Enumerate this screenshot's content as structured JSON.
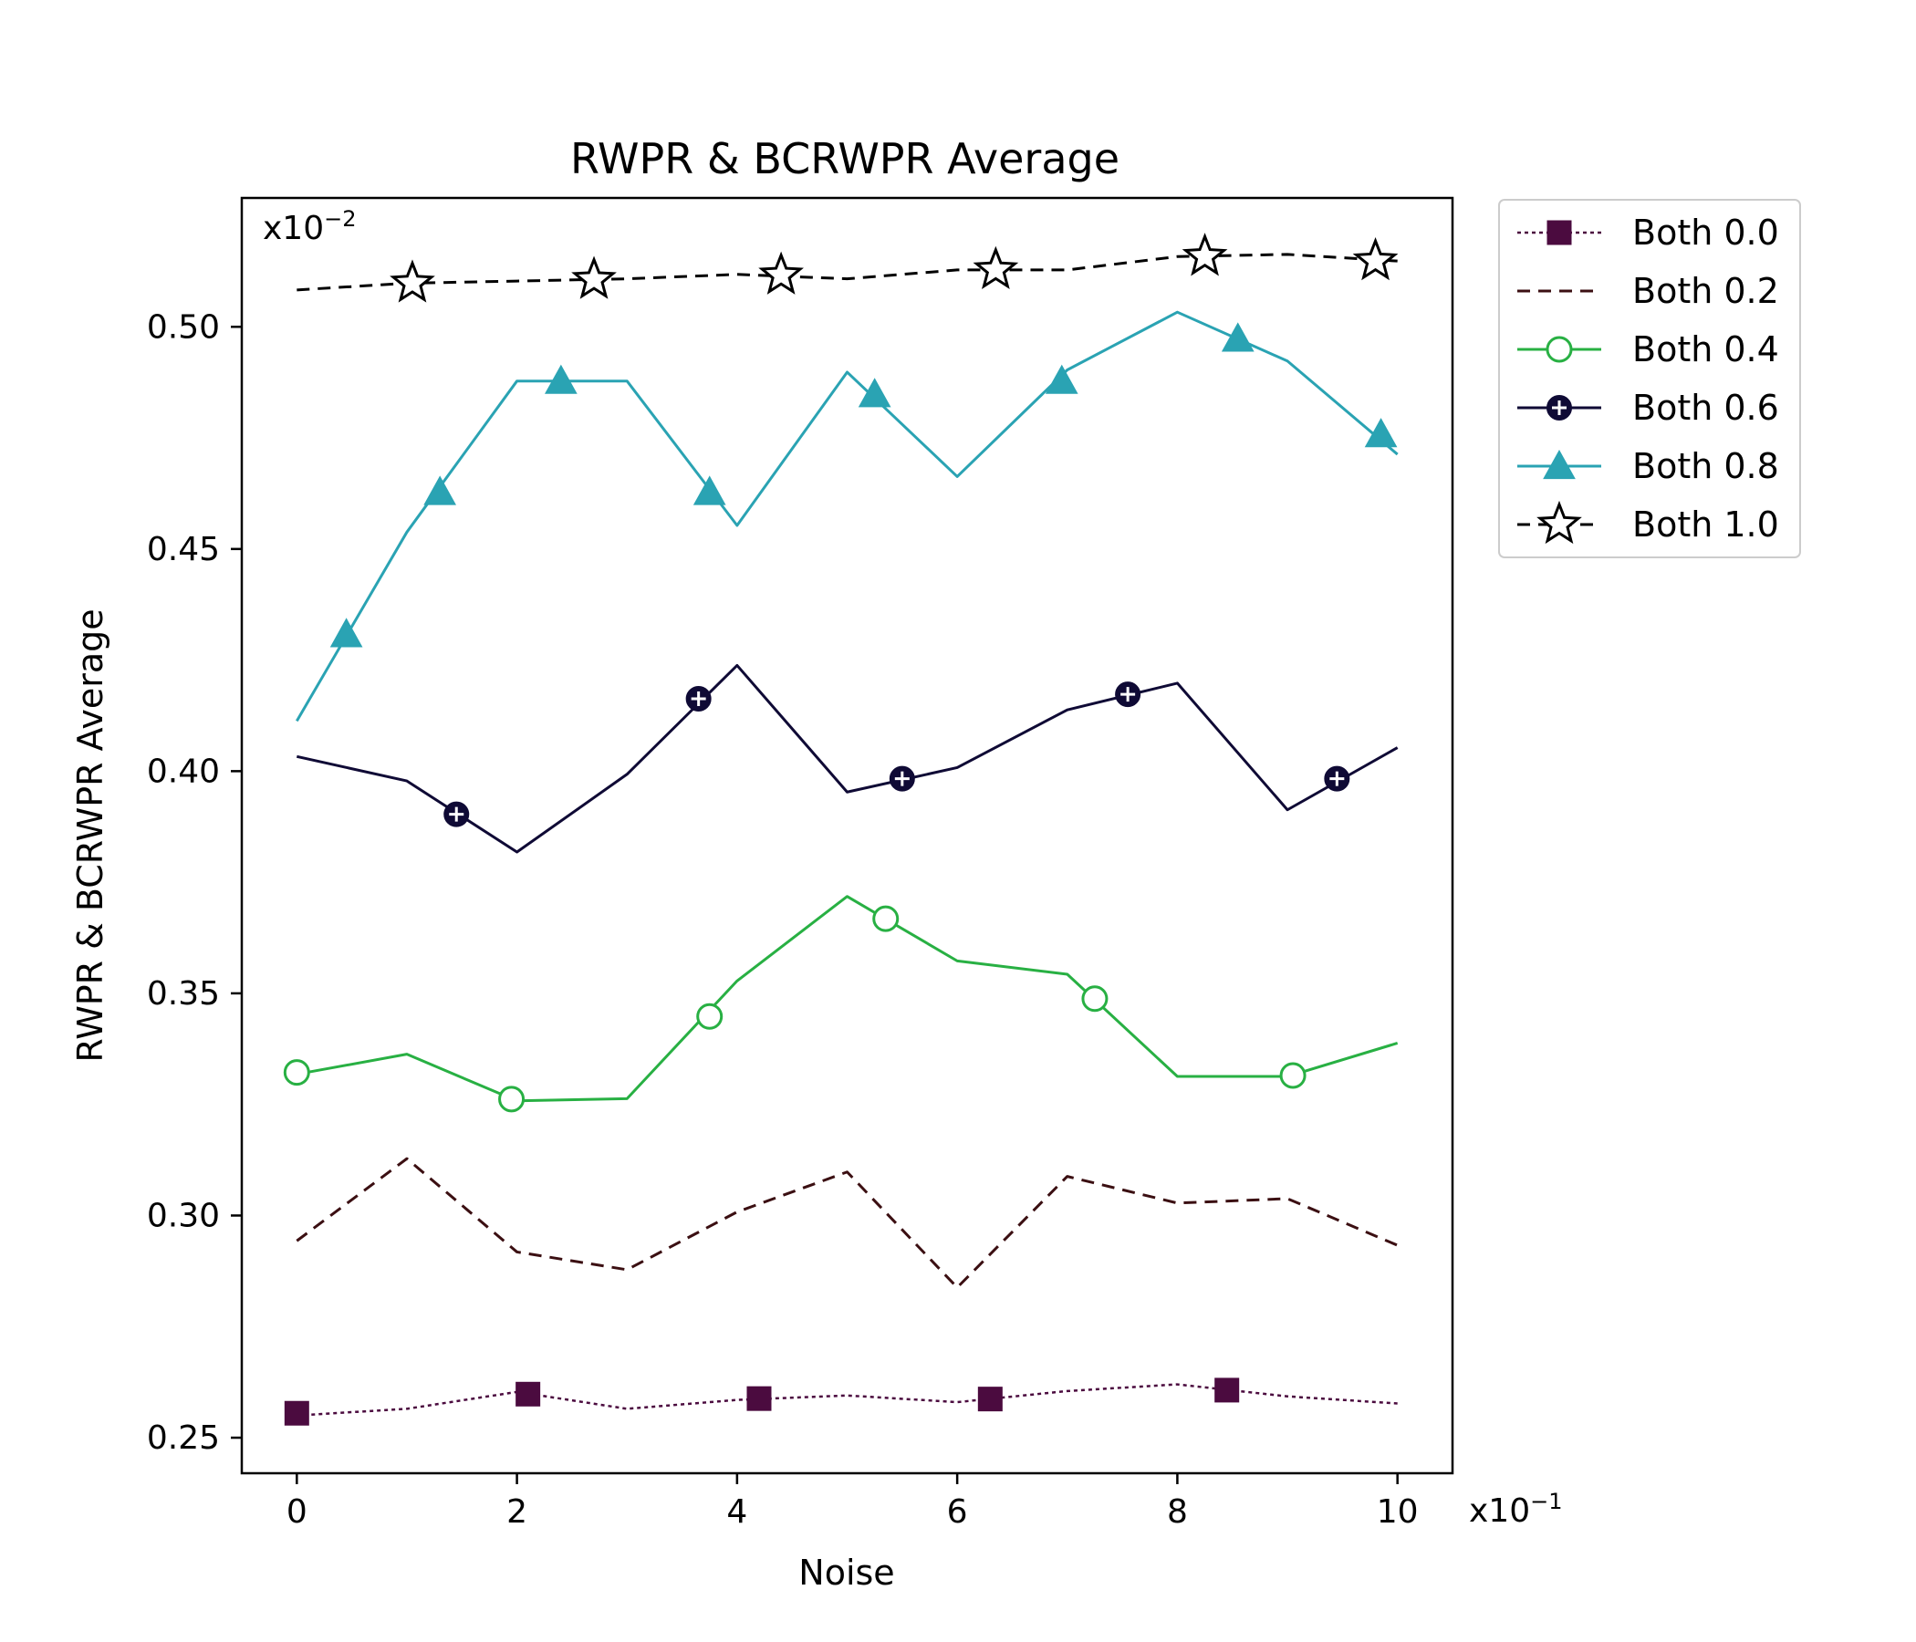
{
  "chart_data": {
    "type": "line",
    "title": "RWPR & BCRWPR Average",
    "xlabel": "Noise",
    "ylabel": "RWPR & BCRWPR Average",
    "x_multiplier": {
      "base": "x10",
      "exponent": "−1"
    },
    "y_multiplier": {
      "base": "x10",
      "exponent": "−2"
    },
    "xlim": [
      -0.5,
      10.5
    ],
    "ylim": [
      0.242,
      0.529
    ],
    "xticks": [
      0,
      2,
      4,
      6,
      8,
      10
    ],
    "xtick_labels": [
      "0",
      "2",
      "4",
      "6",
      "8",
      "10"
    ],
    "yticks": [
      0.25,
      0.3,
      0.35,
      0.4,
      0.45,
      0.5
    ],
    "ytick_labels": [
      "0.25",
      "0.30",
      "0.35",
      "0.40",
      "0.45",
      "0.50"
    ],
    "legend_position": "outside-top-right",
    "x": [
      0,
      1,
      2,
      3,
      4,
      5,
      6,
      7,
      8,
      9,
      10
    ],
    "series": [
      {
        "name": "Both 0.0",
        "color": "#4b0b3f",
        "dash": "dotted",
        "marker": "square",
        "values": [
          0.255,
          0.2565,
          0.2603,
          0.2565,
          0.2585,
          0.2595,
          0.258,
          0.2605,
          0.262,
          0.2593,
          0.2577
        ],
        "marker_points": [
          [
            0,
            0.2555
          ],
          [
            2.1,
            0.2598
          ],
          [
            4.2,
            0.2588
          ],
          [
            6.3,
            0.2587
          ],
          [
            8.45,
            0.2607
          ]
        ]
      },
      {
        "name": "Both 0.2",
        "color": "#3b0f12",
        "dash": "dashed",
        "marker": "none",
        "values": [
          0.2943,
          0.3128,
          0.2918,
          0.2878,
          0.3008,
          0.3098,
          0.2838,
          0.3088,
          0.3028,
          0.3038,
          0.2933
        ],
        "marker_points": []
      },
      {
        "name": "Both 0.4",
        "color": "#28b043",
        "dash": "solid",
        "marker": "circle-open",
        "values": [
          0.3318,
          0.3363,
          0.3258,
          0.3263,
          0.3528,
          0.3718,
          0.3573,
          0.3543,
          0.3313,
          0.3313,
          0.3388
        ],
        "marker_points": [
          [
            0,
            0.3322
          ],
          [
            1.95,
            0.3262
          ],
          [
            3.75,
            0.3448
          ],
          [
            5.35,
            0.3668
          ],
          [
            7.25,
            0.3488
          ],
          [
            9.05,
            0.3315
          ]
        ]
      },
      {
        "name": "Both 0.6",
        "color": "#0f0a35",
        "dash": "solid",
        "marker": "circle-plus",
        "values": [
          0.4033,
          0.3978,
          0.3818,
          0.3993,
          0.4238,
          0.3953,
          0.4008,
          0.4138,
          0.4198,
          0.3913,
          0.4053
        ],
        "marker_points": [
          [
            1.45,
            0.3903
          ],
          [
            3.65,
            0.4163
          ],
          [
            5.5,
            0.3983
          ],
          [
            7.55,
            0.4173
          ],
          [
            9.45,
            0.3983
          ]
        ]
      },
      {
        "name": "Both 0.8",
        "color": "#2aa3b3",
        "dash": "solid",
        "marker": "triangle",
        "values": [
          0.4113,
          0.4538,
          0.4878,
          0.4878,
          0.4553,
          0.4898,
          0.4663,
          0.4903,
          0.5033,
          0.4923,
          0.4713
        ],
        "marker_points": [
          [
            0.45,
            0.4308
          ],
          [
            1.3,
            0.4628
          ],
          [
            2.4,
            0.4878
          ],
          [
            3.75,
            0.4628
          ],
          [
            5.25,
            0.4848
          ],
          [
            6.95,
            0.4878
          ],
          [
            8.55,
            0.4973
          ],
          [
            9.85,
            0.4758
          ]
        ]
      },
      {
        "name": "Both 1.0",
        "color": "#000000",
        "dash": "dashed",
        "marker": "star-open",
        "values": [
          0.5083,
          0.5098,
          0.5103,
          0.5108,
          0.5118,
          0.5108,
          0.5128,
          0.5128,
          0.5158,
          0.5163,
          0.5148
        ],
        "marker_points": [
          [
            1.05,
            0.5098
          ],
          [
            2.7,
            0.5106
          ],
          [
            4.4,
            0.5116
          ],
          [
            6.35,
            0.5128
          ],
          [
            8.25,
            0.5158
          ],
          [
            9.8,
            0.5148
          ]
        ]
      }
    ]
  }
}
